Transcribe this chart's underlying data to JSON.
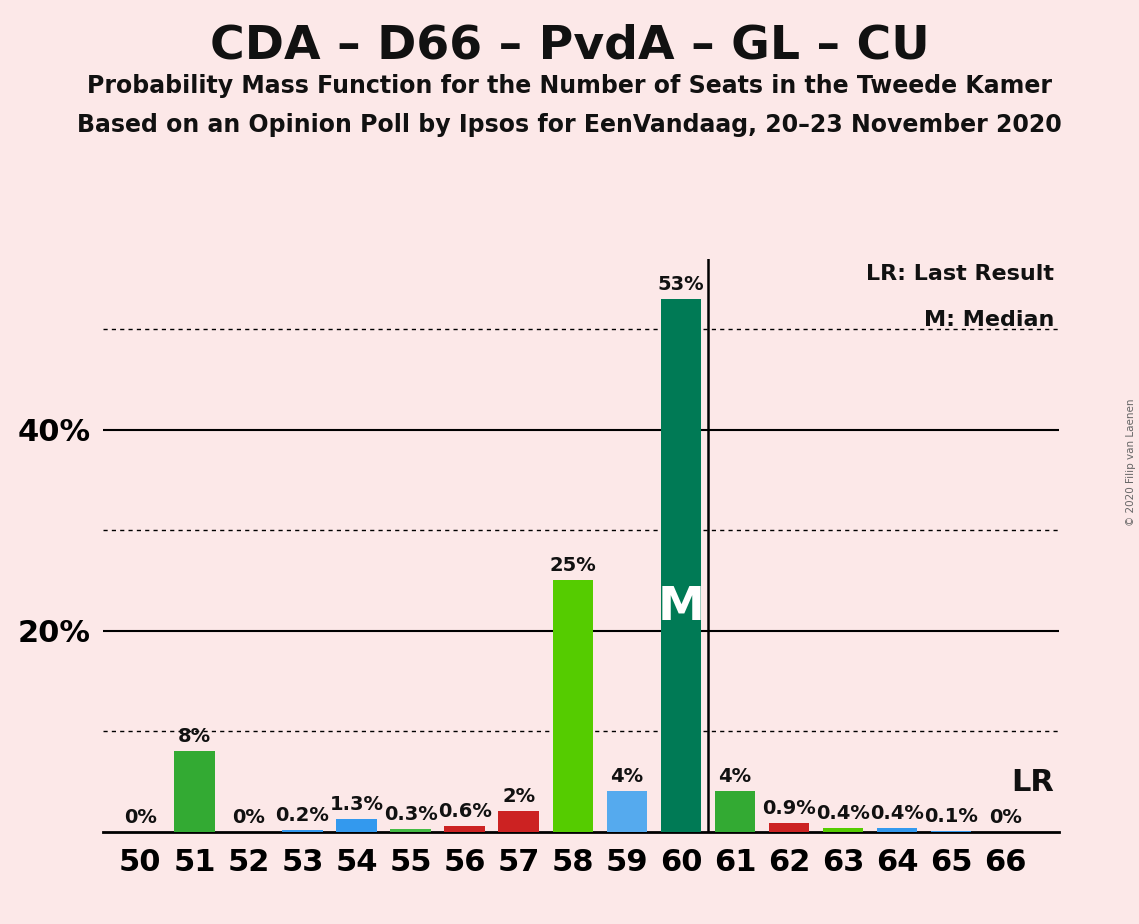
{
  "title": "CDA – D66 – PvdA – GL – CU",
  "subtitle1": "Probability Mass Function for the Number of Seats in the Tweede Kamer",
  "subtitle2": "Based on an Opinion Poll by Ipsos for EenVandaag, 20–23 November 2020",
  "copyright": "© 2020 Filip van Laenen",
  "background_color": "#fce8e8",
  "seats": [
    50,
    51,
    52,
    53,
    54,
    55,
    56,
    57,
    58,
    59,
    60,
    61,
    62,
    63,
    64,
    65,
    66
  ],
  "values": [
    0.0,
    8.0,
    0.0,
    0.2,
    1.3,
    0.3,
    0.6,
    2.0,
    25.0,
    4.0,
    53.0,
    4.0,
    0.9,
    0.4,
    0.4,
    0.1,
    0.0
  ],
  "labels": [
    "0%",
    "8%",
    "0%",
    "0.2%",
    "1.3%",
    "0.3%",
    "0.6%",
    "2%",
    "25%",
    "4%",
    "53%",
    "4%",
    "0.9%",
    "0.4%",
    "0.4%",
    "0.1%",
    "0%"
  ],
  "bar_colors": [
    "#33aa33",
    "#33aa33",
    "#33aa33",
    "#3399ee",
    "#3399ee",
    "#44bb44",
    "#cc2222",
    "#cc2222",
    "#55cc00",
    "#55aaee",
    "#007a55",
    "#33aa33",
    "#cc2222",
    "#55cc00",
    "#3399ee",
    "#3399ee",
    "#33aa33"
  ],
  "median_seat": 60,
  "lr_seat": 61,
  "median_label": "M",
  "lr_label": "LR",
  "legend_lr": "LR: Last Result",
  "legend_m": "M: Median",
  "ylim_max": 57,
  "dotted_lines": [
    10,
    30,
    50
  ],
  "solid_lines": [
    20,
    40
  ],
  "label_color": "#111111",
  "title_fontsize": 34,
  "subtitle_fontsize": 17,
  "axis_fontsize": 22,
  "bar_label_fontsize": 14,
  "median_label_fontsize": 34
}
